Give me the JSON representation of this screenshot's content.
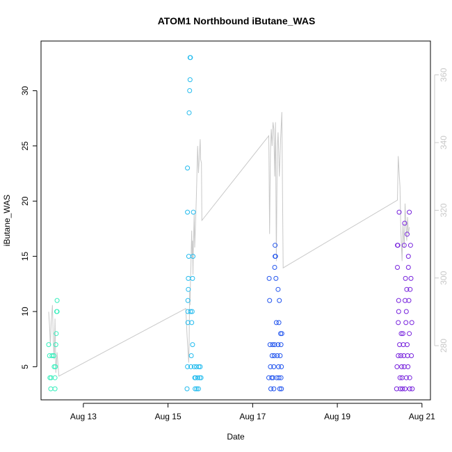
{
  "chart_data": {
    "type": "scatter",
    "title": "ATOM1 Northbound iButane_WAS",
    "xlabel": "Date",
    "ylabel": "iButane_WAS",
    "x_ticks": [
      "Aug 13",
      "Aug 15",
      "Aug 17",
      "Aug 19",
      "Aug 21"
    ],
    "x_tick_days": [
      13,
      15,
      17,
      19,
      21
    ],
    "xlim": [
      12.0,
      21.2
    ],
    "ylim": [
      2.0,
      34.5
    ],
    "y_ticks": [
      5,
      10,
      15,
      20,
      25,
      30
    ],
    "y2lim": [
      264,
      370
    ],
    "y2_ticks": [
      280,
      300,
      320,
      340,
      360
    ],
    "y2_tick_color": "#c8c8c8",
    "line_color": "#c8c8c8",
    "legend": "none",
    "grid": false,
    "series": [
      {
        "color": "#33eebb",
        "points": [
          [
            12.18,
            7
          ],
          [
            12.2,
            6
          ],
          [
            12.21,
            4
          ],
          [
            12.23,
            3
          ],
          [
            12.24,
            4
          ],
          [
            12.26,
            6
          ],
          [
            12.3,
            6
          ],
          [
            12.31,
            5
          ],
          [
            12.33,
            3
          ],
          [
            12.33,
            4
          ],
          [
            12.34,
            5
          ],
          [
            12.35,
            7
          ],
          [
            12.36,
            8
          ],
          [
            12.37,
            10
          ],
          [
            12.38,
            11
          ],
          [
            12.38,
            10
          ],
          [
            12.3,
            6
          ]
        ]
      },
      {
        "color": "#22bbee",
        "points": [
          [
            15.45,
            3
          ],
          [
            15.46,
            5
          ],
          [
            15.47,
            9
          ],
          [
            15.47,
            10
          ],
          [
            15.47,
            11
          ],
          [
            15.48,
            12
          ],
          [
            15.48,
            13
          ],
          [
            15.49,
            15
          ],
          [
            15.46,
            19
          ],
          [
            15.46,
            23
          ],
          [
            15.5,
            28
          ],
          [
            15.51,
            30
          ],
          [
            15.52,
            31
          ],
          [
            15.52,
            33
          ],
          [
            15.53,
            33
          ],
          [
            15.53,
            10
          ],
          [
            15.54,
            5
          ],
          [
            15.55,
            6
          ],
          [
            15.56,
            9
          ],
          [
            15.57,
            10
          ],
          [
            15.58,
            7
          ],
          [
            15.58,
            13
          ],
          [
            15.59,
            15
          ],
          [
            15.6,
            19
          ],
          [
            15.62,
            5
          ],
          [
            15.63,
            4
          ],
          [
            15.64,
            3
          ],
          [
            15.65,
            4
          ],
          [
            15.67,
            5
          ],
          [
            15.68,
            3
          ],
          [
            15.7,
            4
          ],
          [
            15.72,
            3
          ],
          [
            15.73,
            5
          ],
          [
            15.75,
            4
          ],
          [
            15.76,
            5
          ],
          [
            15.78,
            4
          ]
        ]
      },
      {
        "color": "#2255ee",
        "points": [
          [
            17.38,
            4
          ],
          [
            17.39,
            13
          ],
          [
            17.4,
            11
          ],
          [
            17.41,
            7
          ],
          [
            17.42,
            5
          ],
          [
            17.43,
            3
          ],
          [
            17.45,
            4
          ],
          [
            17.46,
            6
          ],
          [
            17.47,
            7
          ],
          [
            17.48,
            4
          ],
          [
            17.5,
            3
          ],
          [
            17.5,
            5
          ],
          [
            17.51,
            6
          ],
          [
            17.52,
            7
          ],
          [
            17.52,
            14
          ],
          [
            17.53,
            15
          ],
          [
            17.53,
            16
          ],
          [
            17.54,
            15
          ],
          [
            17.55,
            13
          ],
          [
            17.56,
            9
          ],
          [
            17.57,
            4
          ],
          [
            17.58,
            6
          ],
          [
            17.6,
            12
          ],
          [
            17.6,
            7
          ],
          [
            17.61,
            5
          ],
          [
            17.62,
            4
          ],
          [
            17.62,
            9
          ],
          [
            17.63,
            11
          ],
          [
            17.64,
            3
          ],
          [
            17.65,
            6
          ],
          [
            17.66,
            8
          ],
          [
            17.67,
            4
          ],
          [
            17.67,
            7
          ],
          [
            17.68,
            5
          ],
          [
            17.68,
            3
          ],
          [
            17.69,
            8
          ]
        ]
      },
      {
        "color": "#7722dd",
        "points": [
          [
            20.4,
            3
          ],
          [
            20.41,
            5
          ],
          [
            20.42,
            14
          ],
          [
            20.42,
            16
          ],
          [
            20.43,
            16
          ],
          [
            20.44,
            6
          ],
          [
            20.44,
            9
          ],
          [
            20.45,
            10
          ],
          [
            20.45,
            11
          ],
          [
            20.46,
            19
          ],
          [
            20.47,
            7
          ],
          [
            20.48,
            4
          ],
          [
            20.49,
            3
          ],
          [
            20.5,
            6
          ],
          [
            20.51,
            8
          ],
          [
            20.52,
            5
          ],
          [
            20.53,
            4
          ],
          [
            20.54,
            3
          ],
          [
            20.55,
            8
          ],
          [
            20.56,
            7
          ],
          [
            20.57,
            6
          ],
          [
            20.58,
            5
          ],
          [
            20.58,
            16
          ],
          [
            20.59,
            18
          ],
          [
            20.6,
            3
          ],
          [
            20.6,
            11
          ],
          [
            20.61,
            13
          ],
          [
            20.62,
            9
          ],
          [
            20.63,
            4
          ],
          [
            20.63,
            10
          ],
          [
            20.64,
            12
          ],
          [
            20.65,
            17
          ],
          [
            20.65,
            7
          ],
          [
            20.66,
            6
          ],
          [
            20.67,
            5
          ],
          [
            20.68,
            15
          ],
          [
            20.68,
            14
          ],
          [
            20.69,
            11
          ],
          [
            20.7,
            8
          ],
          [
            20.7,
            19
          ],
          [
            20.71,
            3
          ],
          [
            20.71,
            4
          ],
          [
            20.72,
            12
          ],
          [
            20.73,
            16
          ],
          [
            20.74,
            13
          ],
          [
            20.75,
            6
          ],
          [
            20.76,
            9
          ],
          [
            20.77,
            3
          ]
        ]
      }
    ],
    "line": [
      [
        12.18,
        290
      ],
      [
        12.2,
        286
      ],
      [
        12.22,
        280
      ],
      [
        12.24,
        287
      ],
      [
        12.27,
        292
      ],
      [
        12.29,
        281
      ],
      [
        12.31,
        276
      ],
      [
        12.33,
        288
      ],
      [
        12.35,
        272
      ],
      [
        12.38,
        278
      ],
      [
        12.42,
        271
      ],
      [
        15.42,
        291
      ],
      [
        15.45,
        283
      ],
      [
        15.47,
        279
      ],
      [
        15.49,
        275
      ],
      [
        15.5,
        281
      ],
      [
        15.51,
        296
      ],
      [
        15.52,
        292
      ],
      [
        15.53,
        299
      ],
      [
        15.54,
        303
      ],
      [
        15.55,
        309
      ],
      [
        15.56,
        314
      ],
      [
        15.57,
        306
      ],
      [
        15.58,
        311
      ],
      [
        15.59,
        301
      ],
      [
        15.6,
        309
      ],
      [
        15.62,
        319
      ],
      [
        15.63,
        309
      ],
      [
        15.65,
        316
      ],
      [
        15.67,
        324
      ],
      [
        15.7,
        339
      ],
      [
        15.72,
        331
      ],
      [
        15.74,
        336
      ],
      [
        15.76,
        341
      ],
      [
        15.77,
        335
      ],
      [
        15.79,
        334
      ],
      [
        15.8,
        317
      ],
      [
        17.38,
        342
      ],
      [
        17.4,
        313
      ],
      [
        17.42,
        337
      ],
      [
        17.44,
        344
      ],
      [
        17.46,
        339
      ],
      [
        17.48,
        346
      ],
      [
        17.5,
        344
      ],
      [
        17.52,
        330
      ],
      [
        17.54,
        346
      ],
      [
        17.56,
        305
      ],
      [
        17.58,
        338
      ],
      [
        17.6,
        343
      ],
      [
        17.63,
        330
      ],
      [
        17.66,
        341
      ],
      [
        17.69,
        349
      ],
      [
        17.72,
        303
      ],
      [
        20.42,
        323
      ],
      [
        20.44,
        336
      ],
      [
        20.46,
        331
      ],
      [
        20.48,
        327
      ],
      [
        20.5,
        314
      ],
      [
        20.53,
        305
      ],
      [
        20.55,
        316
      ],
      [
        20.58,
        309
      ],
      [
        20.6,
        322
      ],
      [
        20.62,
        316
      ],
      [
        20.64,
        311
      ],
      [
        20.66,
        318
      ],
      [
        20.68,
        313
      ],
      [
        20.7,
        315
      ]
    ]
  }
}
